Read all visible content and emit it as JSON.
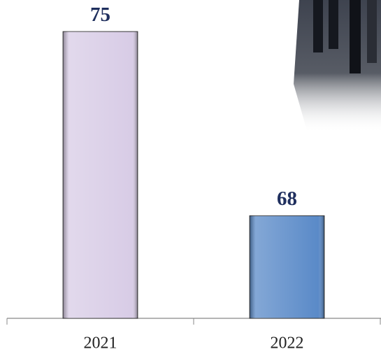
{
  "chart_data": {
    "type": "bar",
    "categories": [
      "2021",
      "2022"
    ],
    "values": [
      75,
      68
    ],
    "colors": [
      "#d8cce6",
      "#5a8ac8"
    ],
    "ylim": [
      64.1,
      76.2
    ]
  }
}
